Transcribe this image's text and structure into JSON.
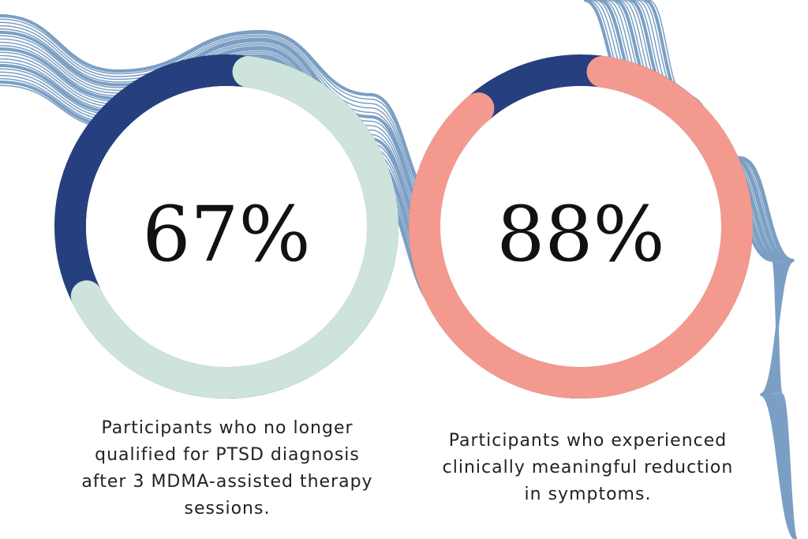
{
  "colors": {
    "background_lines": "#7b9fc4",
    "navy": "#263f7e",
    "mint": "#cde3dc",
    "salmon": "#f4998e"
  },
  "chart_data": [
    {
      "type": "pie",
      "variant": "donut",
      "label": "67%",
      "values": [
        67,
        33
      ],
      "colors": [
        "#cde3dc",
        "#263f7e"
      ],
      "caption": "Participants who no longer\nqualified for PTSD diagnosis\nafter 3 MDMA-assisted therapy\nsessions."
    },
    {
      "type": "pie",
      "variant": "donut",
      "label": "88%",
      "values": [
        88,
        12
      ],
      "colors": [
        "#f4998e",
        "#263f7e"
      ],
      "caption": "Participants who experienced\nclinically meaningful reduction\nin symptoms."
    }
  ]
}
